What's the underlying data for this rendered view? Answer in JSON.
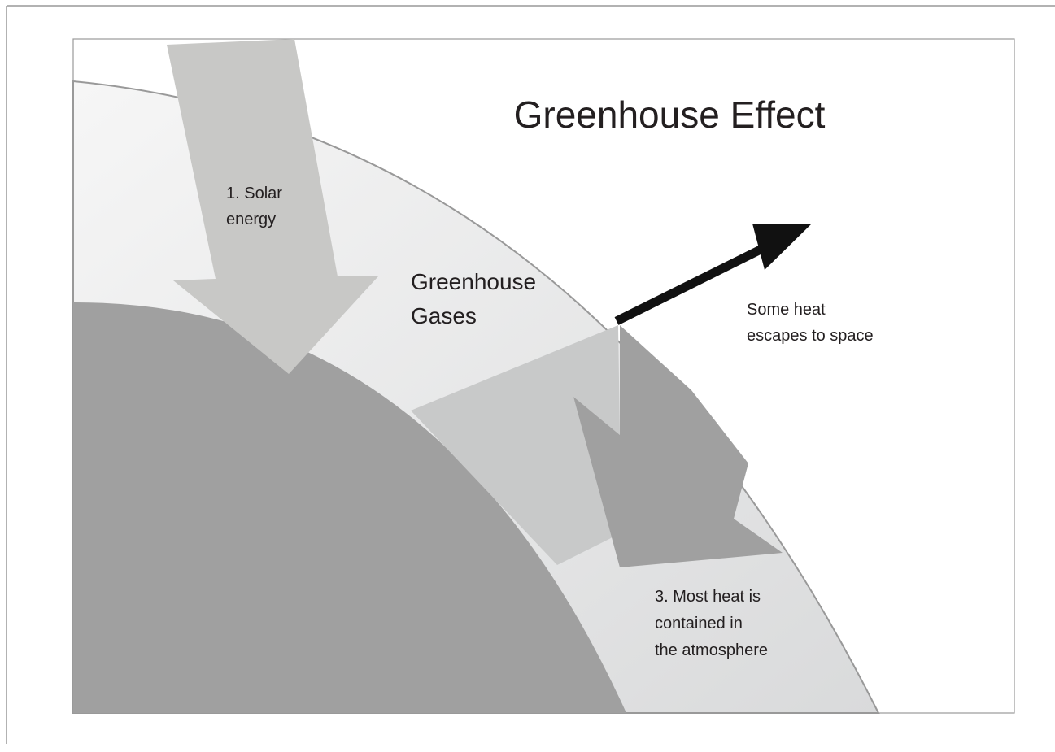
{
  "title": "Greenhouse Effect",
  "labels": {
    "solar": [
      "1. Solar",
      "energy"
    ],
    "gases": [
      "Greenhouse",
      "Gases"
    ],
    "escape": [
      "Some heat",
      "escapes to space"
    ],
    "contained": [
      "3. Most heat is",
      "contained in",
      "the atmosphere"
    ]
  }
}
